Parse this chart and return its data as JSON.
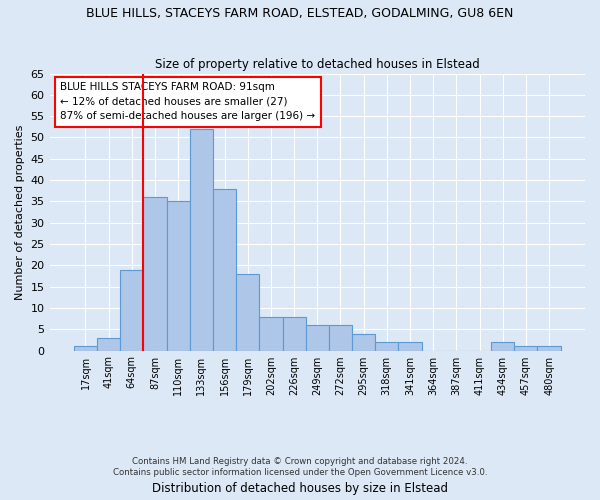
{
  "title_line1": "BLUE HILLS, STACEYS FARM ROAD, ELSTEAD, GODALMING, GU8 6EN",
  "title_line2": "Size of property relative to detached houses in Elstead",
  "xlabel": "Distribution of detached houses by size in Elstead",
  "ylabel": "Number of detached properties",
  "bin_labels": [
    "17sqm",
    "41sqm",
    "64sqm",
    "87sqm",
    "110sqm",
    "133sqm",
    "156sqm",
    "179sqm",
    "202sqm",
    "226sqm",
    "249sqm",
    "272sqm",
    "295sqm",
    "318sqm",
    "341sqm",
    "364sqm",
    "387sqm",
    "411sqm",
    "434sqm",
    "457sqm",
    "480sqm"
  ],
  "bar_values": [
    1,
    3,
    19,
    36,
    35,
    52,
    38,
    18,
    8,
    8,
    6,
    6,
    4,
    2,
    2,
    0,
    0,
    0,
    2,
    1,
    1
  ],
  "bar_color": "#aec6e8",
  "bar_edge_color": "#5b9bd5",
  "vline_bin_index": 3,
  "vline_color": "red",
  "annotation_text": "BLUE HILLS STACEYS FARM ROAD: 91sqm\n← 12% of detached houses are smaller (27)\n87% of semi-detached houses are larger (196) →",
  "annotation_box_color": "white",
  "annotation_box_edge": "red",
  "ylim": [
    0,
    65
  ],
  "yticks": [
    0,
    5,
    10,
    15,
    20,
    25,
    30,
    35,
    40,
    45,
    50,
    55,
    60,
    65
  ],
  "footer_line1": "Contains HM Land Registry data © Crown copyright and database right 2024.",
  "footer_line2": "Contains public sector information licensed under the Open Government Licence v3.0.",
  "bg_color": "#dce8f5",
  "plot_bg_color": "#dce8f5",
  "grid_color": "white"
}
